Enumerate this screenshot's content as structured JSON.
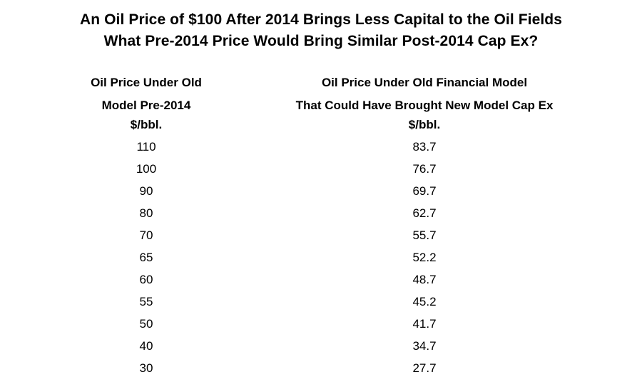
{
  "title": {
    "line1": "An Oil Price of $100 After 2014 Brings Less Capital to the Oil Fields",
    "line2": "What Pre-2014 Price Would Bring Similar Post-2014 Cap Ex?"
  },
  "columns": [
    {
      "header_lines": [
        "Oil Price Under Old",
        "Model Pre-2014",
        "$/bbl."
      ]
    },
    {
      "header_lines": [
        "Oil Price Under Old Financial Model",
        "That Could Have Brought New Model Cap Ex",
        "$/bbl."
      ]
    }
  ],
  "rows": [
    [
      "110",
      "83.7"
    ],
    [
      "100",
      "76.7"
    ],
    [
      "90",
      "69.7"
    ],
    [
      "80",
      "62.7"
    ],
    [
      "70",
      "55.7"
    ],
    [
      "65",
      "52.2"
    ],
    [
      "60",
      "48.7"
    ],
    [
      "55",
      "45.2"
    ],
    [
      "50",
      "41.7"
    ],
    [
      "40",
      "34.7"
    ],
    [
      "30",
      "27.7"
    ]
  ]
}
